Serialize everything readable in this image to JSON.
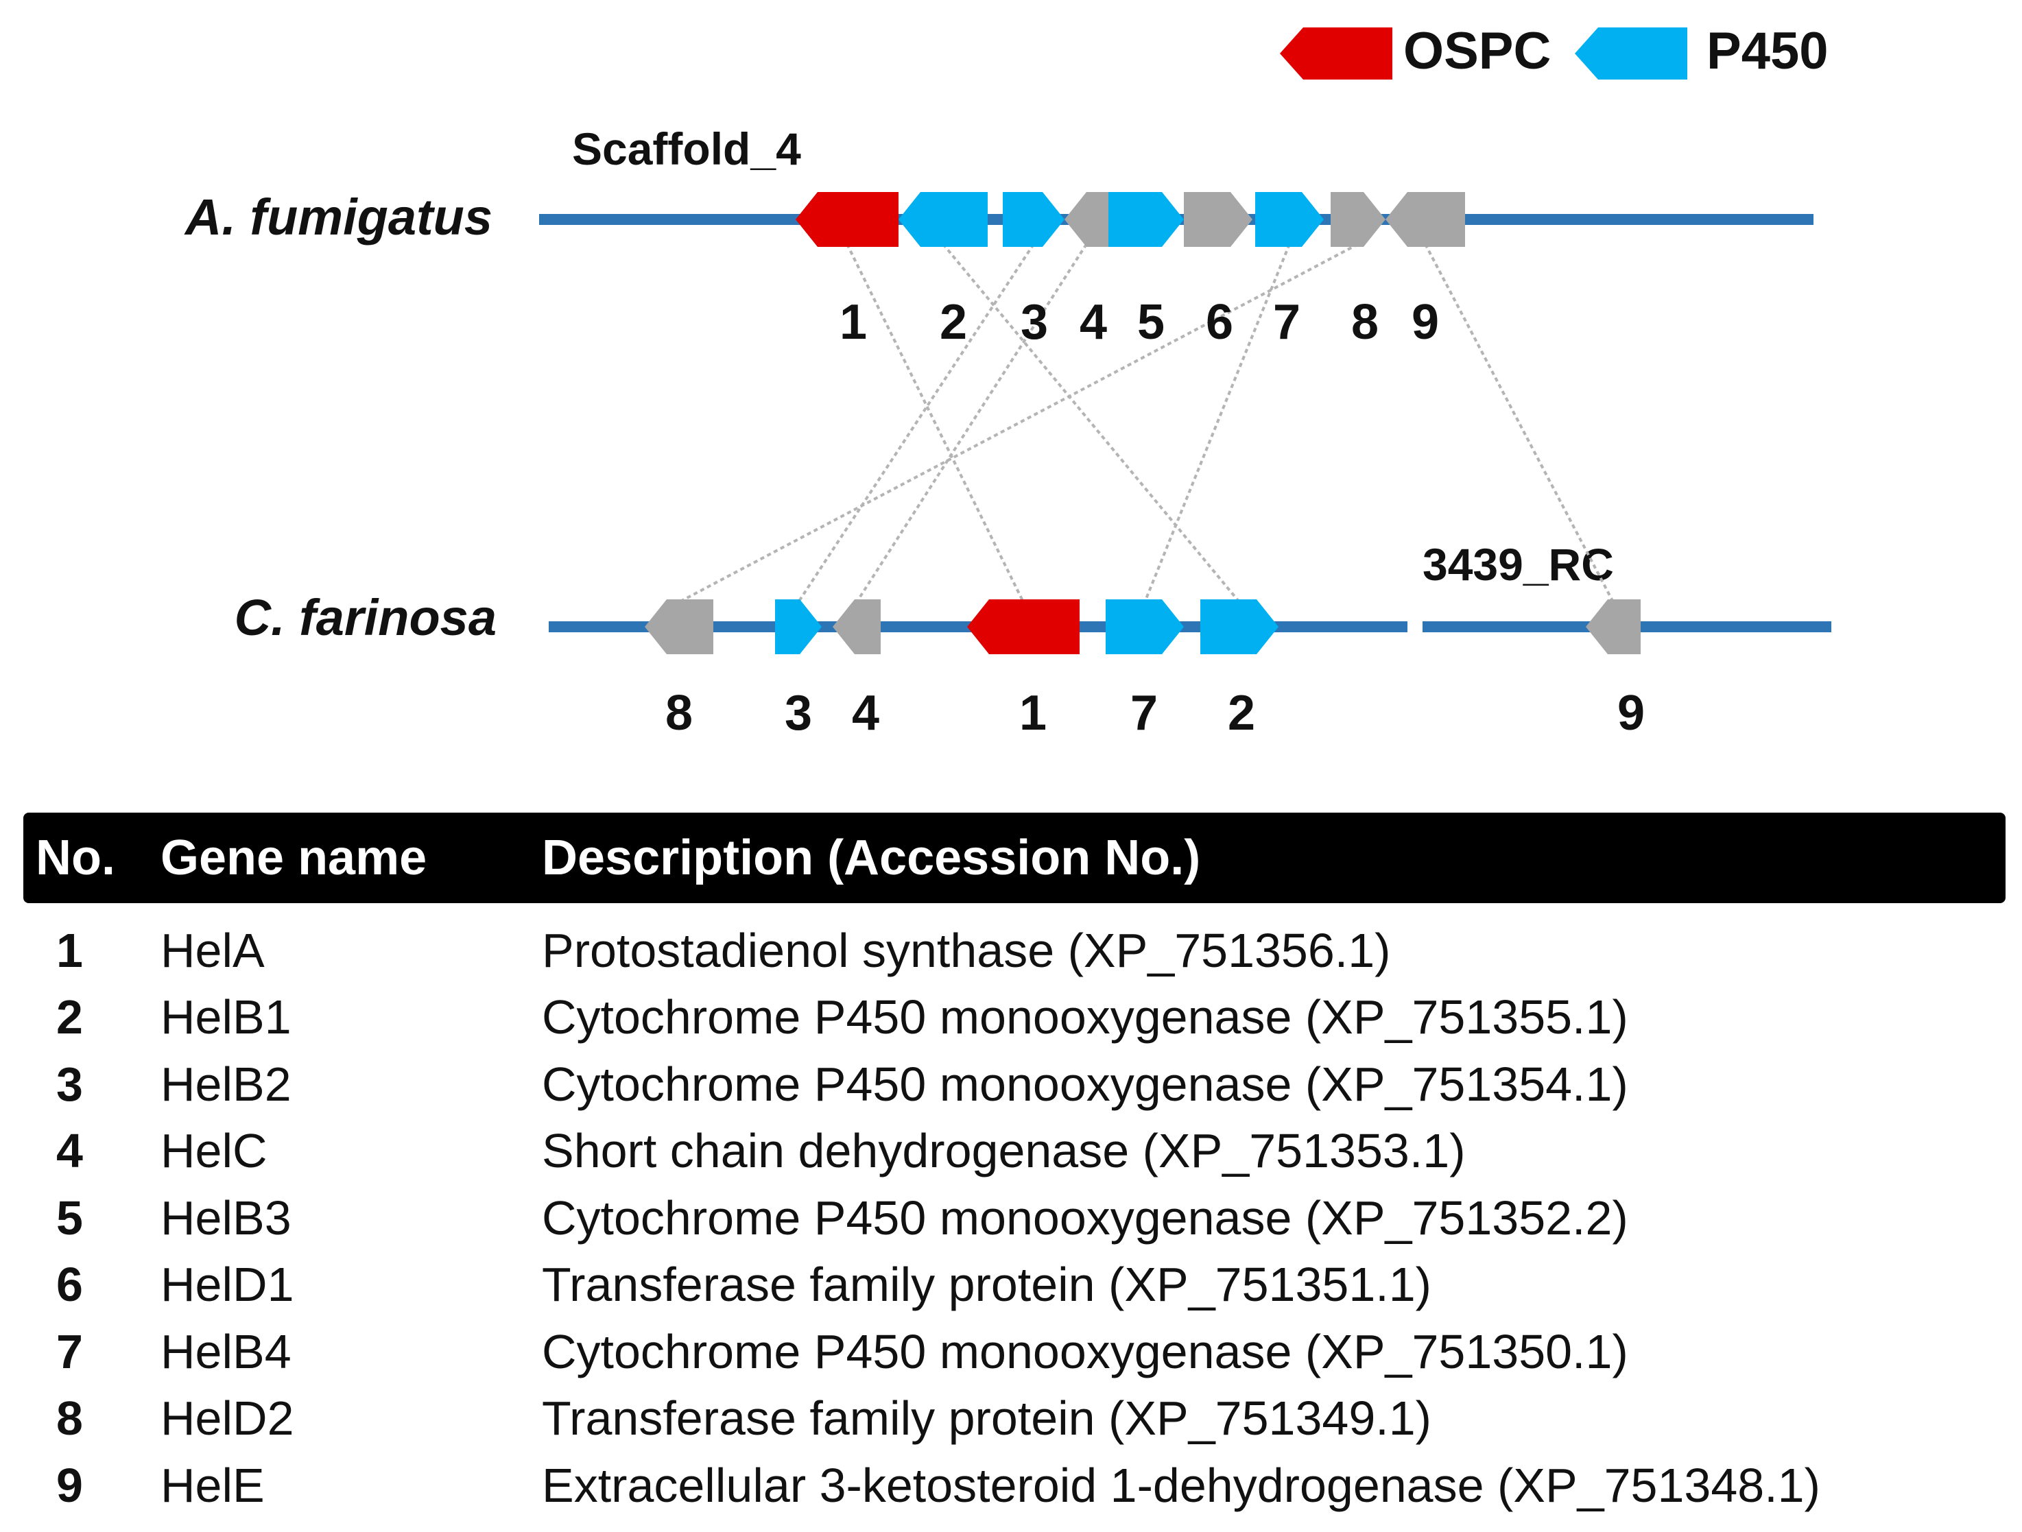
{
  "legend": [
    {
      "label": "OSPC",
      "color": "#e00000"
    },
    {
      "label": "P450",
      "color": "#00b0f0"
    }
  ],
  "colors": {
    "chromosome": "#2e75b6",
    "other_gene": "#a6a6a6",
    "link": "#b4b4b4"
  },
  "tracks": {
    "top": {
      "organism": "A. fumigatus",
      "scaffold": "Scaffold_4",
      "genes": [
        {
          "num": "1",
          "type": "OSPC"
        },
        {
          "num": "2",
          "type": "P450"
        },
        {
          "num": "3",
          "type": "P450"
        },
        {
          "num": "4",
          "type": "other"
        },
        {
          "num": "5",
          "type": "P450"
        },
        {
          "num": "6",
          "type": "other"
        },
        {
          "num": "7",
          "type": "P450"
        },
        {
          "num": "8",
          "type": "other"
        },
        {
          "num": "9",
          "type": "other"
        }
      ]
    },
    "bottom": {
      "organism": "C. farinosa",
      "scaffold": "3439_RC",
      "genes": [
        {
          "num": "8",
          "type": "other"
        },
        {
          "num": "3",
          "type": "P450"
        },
        {
          "num": "4",
          "type": "other"
        },
        {
          "num": "1",
          "type": "OSPC"
        },
        {
          "num": "7",
          "type": "P450"
        },
        {
          "num": "2",
          "type": "P450"
        },
        {
          "num": "9",
          "type": "other"
        }
      ]
    }
  },
  "table": {
    "headers": {
      "no": "No.",
      "name": "Gene name",
      "desc": "Description (Accession No.)"
    },
    "rows": [
      {
        "no": "1",
        "name": "HelA",
        "desc": "Protostadienol synthase (XP_751356.1)"
      },
      {
        "no": "2",
        "name": "HelB1",
        "desc": "Cytochrome P450 monooxygenase (XP_751355.1)"
      },
      {
        "no": "3",
        "name": "HelB2",
        "desc": "Cytochrome P450 monooxygenase (XP_751354.1)"
      },
      {
        "no": "4",
        "name": "HelC",
        "desc": "Short chain dehydrogenase (XP_751353.1)"
      },
      {
        "no": "5",
        "name": "HelB3",
        "desc": "Cytochrome P450 monooxygenase (XP_751352.2)"
      },
      {
        "no": "6",
        "name": "HelD1",
        "desc": "Transferase family protein (XP_751351.1)"
      },
      {
        "no": "7",
        "name": "HelB4",
        "desc": "Cytochrome P450 monooxygenase (XP_751350.1)"
      },
      {
        "no": "8",
        "name": "HelD2",
        "desc": "Transferase family protein (XP_751349.1)"
      },
      {
        "no": "9",
        "name": "HelE",
        "desc": "Extracellular 3-ketosteroid 1-dehydrogenase (XP_751348.1)"
      }
    ]
  }
}
